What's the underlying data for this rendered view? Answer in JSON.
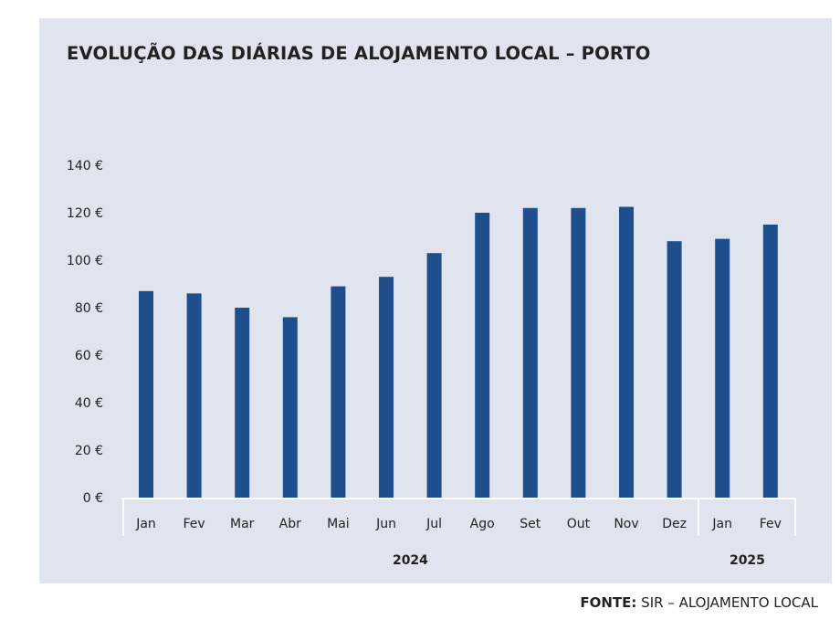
{
  "chart_data": {
    "type": "bar",
    "title": "EVOLUÇÃO DAS DIÁRIAS DE ALOJAMENTO LOCAL – PORTO",
    "xlabel": "",
    "ylabel": "",
    "categories": [
      "Jan",
      "Fev",
      "Mar",
      "Abr",
      "Mai",
      "Jun",
      "Jul",
      "Ago",
      "Set",
      "Out",
      "Nov",
      "Dez",
      "Jan",
      "Fev"
    ],
    "year_groups": [
      {
        "label": "2024",
        "count": 12
      },
      {
        "label": "2025",
        "count": 2
      }
    ],
    "values": [
      87,
      86,
      80,
      76,
      89,
      93,
      103,
      120,
      122,
      122,
      122.5,
      108,
      109,
      115
    ],
    "yticks": [
      "0 €",
      "20 €",
      "40 €",
      "60 €",
      "80 €",
      "100 €",
      "120 €",
      "140 €"
    ],
    "ytick_values": [
      0,
      20,
      40,
      60,
      80,
      100,
      120,
      140
    ],
    "ylim": [
      0,
      140
    ],
    "grid": false,
    "legend": "none",
    "colors": {
      "bar": "#1f4e8c",
      "background": "#dfe4ef",
      "axis_band": "#ffffff"
    }
  },
  "source": {
    "prefix": "FONTE:",
    "text": "SIR – ALOJAMENTO LOCAL"
  }
}
